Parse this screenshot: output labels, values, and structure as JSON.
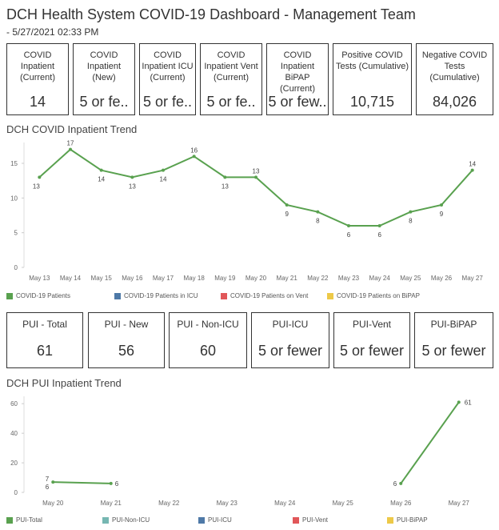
{
  "header": {
    "title": "DCH Health System COVID-19 Dashboard - Management Team",
    "subtitle": " - 5/27/2021 02:33 PM"
  },
  "cards_top": [
    {
      "label": "COVID Inpatient (Current)",
      "value": "14"
    },
    {
      "label": "COVID Inpatient (New)",
      "value": "5 or fe.."
    },
    {
      "label": "COVID Inpatient ICU (Current)",
      "value": "5 or fe.."
    },
    {
      "label": "COVID Inpatient Vent (Current)",
      "value": "5 or fe.."
    },
    {
      "label": "COVID Inpatient BiPAP (Current)",
      "value": "5 or few.."
    },
    {
      "label": "Positive COVID Tests (Cumulative)",
      "value": "10,715"
    },
    {
      "label": "Negative COVID Tests (Cumulative)",
      "value": "84,026"
    }
  ],
  "cards_pui": [
    {
      "label": "PUI - Total",
      "value": "61"
    },
    {
      "label": "PUI - New",
      "value": "56"
    },
    {
      "label": "PUI - Non-ICU",
      "value": "60"
    },
    {
      "label": "PUI-ICU",
      "value": "5 or fewer"
    },
    {
      "label": "PUI-Vent",
      "value": "5 or fewer"
    },
    {
      "label": "PUI-BiPAP",
      "value": "5 or fewer"
    }
  ],
  "sections": {
    "covid_trend_title": "DCH COVID Inpatient Trend",
    "pui_trend_title": "DCH PUI Inpatient Trend"
  },
  "colors": {
    "green": "#59a14f",
    "blue": "#4e79a7",
    "red": "#e15759",
    "yellow": "#edc948",
    "teal": "#76b7b2"
  },
  "chart_data": [
    {
      "type": "line",
      "title": "DCH COVID Inpatient Trend",
      "categories": [
        "May 13",
        "May 14",
        "May 15",
        "May 16",
        "May 17",
        "May 18",
        "May 19",
        "May 20",
        "May 21",
        "May 22",
        "May 23",
        "May 24",
        "May 25",
        "May 26",
        "May 27"
      ],
      "series": [
        {
          "name": "COVID-19 Patients",
          "values": [
            13,
            17,
            14,
            13,
            14,
            16,
            13,
            13,
            9,
            8,
            6,
            6,
            8,
            9,
            14
          ]
        }
      ],
      "legend": [
        "COVID-19 Patients",
        "COVID-19 Patients in ICU",
        "COVID-19 Patients on Vent",
        "COVID-19 Patients on BiPAP"
      ],
      "yticks": [
        0,
        5,
        10,
        15
      ],
      "ylim": [
        0,
        18
      ],
      "legend_position": "bottom"
    },
    {
      "type": "line",
      "title": "DCH PUI Inpatient Trend",
      "categories": [
        "May 20",
        "May 21",
        "May 22",
        "May 23",
        "May 24",
        "May 25",
        "May 26",
        "May 27"
      ],
      "series": [
        {
          "name": "PUI-Total",
          "points": [
            {
              "x": "May 20",
              "y": 7
            },
            {
              "x": "May 21",
              "y": 6
            },
            {
              "x": "May 26",
              "y": 6
            },
            {
              "x": "May 27",
              "y": 61
            }
          ]
        }
      ],
      "point_labels": [
        {
          "x": "May 20",
          "text": "7"
        },
        {
          "x": "May 20",
          "text": "6"
        },
        {
          "x": "May 21",
          "text": "6"
        },
        {
          "x": "May 26",
          "text": "6"
        },
        {
          "x": "May 27",
          "text": "61"
        }
      ],
      "legend": [
        "PUI-Total",
        "PUI-Non-ICU",
        "PUI-ICU",
        "PUI-Vent",
        "PUI-BiPAP"
      ],
      "yticks": [
        0,
        20,
        40,
        60
      ],
      "ylim": [
        0,
        65
      ],
      "legend_position": "bottom"
    }
  ]
}
